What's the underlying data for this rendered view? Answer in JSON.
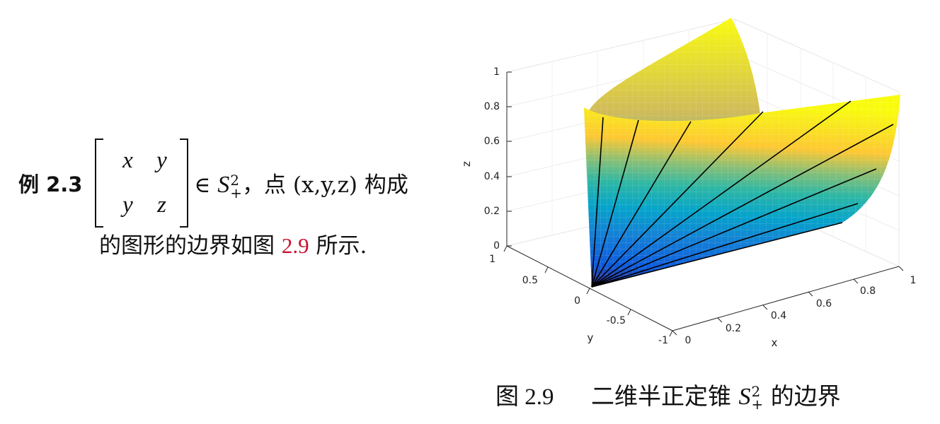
{
  "example": {
    "label": "例 2.3",
    "matrix": {
      "a11": "x",
      "a12": "y",
      "a21": "y",
      "a22": "z"
    },
    "in_symbol": "∈",
    "set_symbol": "S",
    "set_sup": "2",
    "set_sub": "+",
    "text_after": "，点 (x,y,z) 构成",
    "line2_before": "的图形的边界如图 ",
    "line2_ref": "2.9",
    "line2_after": " 所示."
  },
  "figure": {
    "caption_number": "图 2.9",
    "caption_text": "二维半正定锥",
    "caption_set": "S",
    "caption_sup": "2",
    "caption_sub": "+",
    "caption_tail": "的边界"
  },
  "chart_data": {
    "type": "surface",
    "description_of_surface": "boundary of 2D PSD cone: xz = y^2, x,z >= 0",
    "xlabel": "x",
    "ylabel": "y",
    "zlabel": "z",
    "xlim": [
      0,
      1
    ],
    "ylim": [
      -1,
      1
    ],
    "zlim": [
      0,
      1
    ],
    "x_ticks": [
      "0",
      "0.2",
      "0.4",
      "0.6",
      "0.8",
      "1"
    ],
    "y_ticks": [
      "-1",
      "-0.5",
      "0",
      "0.5",
      "1"
    ],
    "z_ticks": [
      "0",
      "0.2",
      "0.4",
      "0.6",
      "0.8",
      "1"
    ],
    "grid": true,
    "colormap": [
      "#352a87",
      "#0f5cdd",
      "#1481d6",
      "#06a4ca",
      "#2eb7a4",
      "#87bf77",
      "#d1bb59",
      "#fec832",
      "#f9fb0e"
    ]
  }
}
